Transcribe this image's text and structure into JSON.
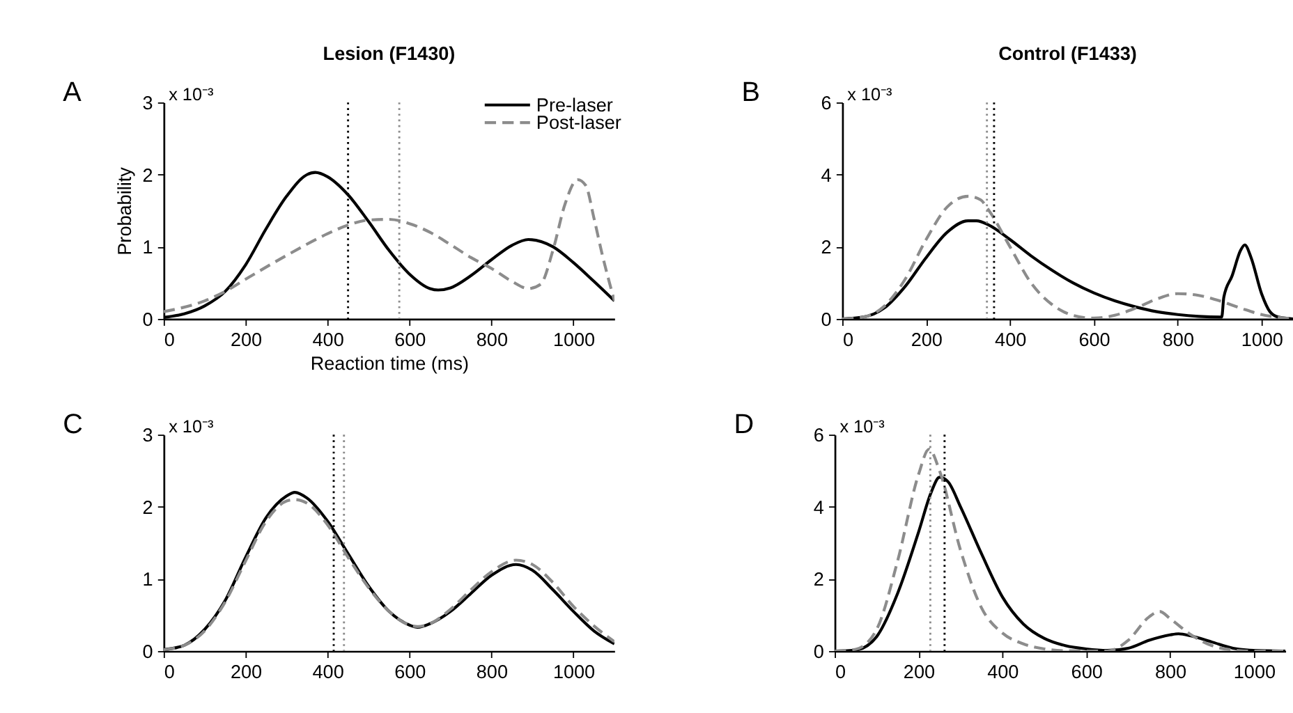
{
  "chart_data": [
    {
      "type": "line",
      "title": "Lesion (F1430)",
      "xlabel": "Reaction time (ms)",
      "ylabel": "Probability",
      "annotations": [
        "A",
        "x 10⁻³"
      ],
      "xlim": [
        0,
        1100
      ],
      "xticks": [
        0,
        200,
        400,
        600,
        800,
        1000
      ],
      "ylim": [
        0,
        3
      ],
      "yticks": [
        0,
        1,
        2,
        3
      ],
      "grid": false,
      "legend": "top right",
      "series": [
        {
          "name": "Pre-laser",
          "color": "#000000",
          "line_style": "solid",
          "x": [
            0,
            50,
            100,
            150,
            200,
            250,
            300,
            350,
            370,
            400,
            450,
            500,
            550,
            600,
            650,
            670,
            700,
            750,
            800,
            850,
            890,
            950,
            1000,
            1050,
            1100
          ],
          "values": [
            0.02,
            0.07,
            0.18,
            0.38,
            0.75,
            1.25,
            1.7,
            2.0,
            2.03,
            1.97,
            1.72,
            1.35,
            0.95,
            0.62,
            0.42,
            0.4,
            0.43,
            0.6,
            0.82,
            1.02,
            1.1,
            1.0,
            0.78,
            0.52,
            0.25
          ]
        },
        {
          "name": "Post-laser",
          "color": "#8c8c8c",
          "line_style": "dashed",
          "x": [
            0,
            100,
            150,
            200,
            300,
            400,
            450,
            500,
            550,
            600,
            650,
            700,
            750,
            800,
            850,
            890,
            920,
            950,
            980,
            1010,
            1030,
            1050,
            1070,
            1100
          ],
          "values": [
            0.1,
            0.25,
            0.38,
            0.55,
            0.88,
            1.18,
            1.3,
            1.37,
            1.38,
            1.32,
            1.2,
            1.03,
            0.85,
            0.7,
            0.52,
            0.42,
            0.48,
            0.95,
            1.6,
            1.93,
            1.85,
            1.4,
            0.9,
            0.25
          ]
        }
      ],
      "ref_lines": [
        {
          "axis": "x",
          "value": 450,
          "color": "#000000",
          "line_style": "dotted"
        },
        {
          "axis": "x",
          "value": 575,
          "color": "#8c8c8c",
          "line_style": "dotted"
        }
      ]
    },
    {
      "type": "line",
      "title": "Control (F1433)",
      "annotations": [
        "B",
        "x 10⁻³"
      ],
      "xlim": [
        0,
        1075
      ],
      "xticks": [
        0,
        200,
        400,
        600,
        800,
        1000
      ],
      "ylim": [
        0,
        6
      ],
      "yticks": [
        0,
        2,
        4,
        6
      ],
      "grid": false,
      "series": [
        {
          "color": "#000000",
          "line_style": "solid",
          "x": [
            0,
            50,
            100,
            150,
            200,
            250,
            300,
            320,
            350,
            400,
            450,
            500,
            550,
            600,
            650,
            700,
            750,
            800,
            850,
            905,
            910,
            930,
            950,
            960,
            975,
            1000,
            1020,
            1040,
            1075
          ],
          "values": [
            0,
            0.05,
            0.3,
            0.9,
            1.7,
            2.4,
            2.72,
            2.72,
            2.6,
            2.2,
            1.75,
            1.35,
            1.0,
            0.72,
            0.5,
            0.33,
            0.2,
            0.12,
            0.07,
            0.05,
            0.6,
            1.2,
            1.9,
            2.05,
            1.7,
            0.7,
            0.2,
            0.05,
            0
          ]
        },
        {
          "color": "#8c8c8c",
          "line_style": "dashed",
          "x": [
            0,
            50,
            100,
            150,
            200,
            250,
            300,
            330,
            350,
            400,
            450,
            500,
            550,
            600,
            650,
            700,
            750,
            800,
            850,
            900,
            950,
            1000,
            1050,
            1075
          ],
          "values": [
            0,
            0.05,
            0.35,
            1.1,
            2.2,
            3.1,
            3.4,
            3.3,
            3.0,
            2.0,
            1.0,
            0.4,
            0.1,
            0.02,
            0.1,
            0.3,
            0.55,
            0.7,
            0.65,
            0.5,
            0.3,
            0.12,
            0.03,
            0
          ]
        }
      ],
      "ref_lines": [
        {
          "axis": "x",
          "value": 345,
          "color": "#8c8c8c",
          "line_style": "dotted"
        },
        {
          "axis": "x",
          "value": 362,
          "color": "#000000",
          "line_style": "dotted"
        }
      ]
    },
    {
      "type": "line",
      "annotations": [
        "C",
        "x 10⁻³"
      ],
      "xlim": [
        0,
        1100
      ],
      "xticks": [
        0,
        200,
        400,
        600,
        800,
        1000
      ],
      "ylim": [
        0,
        3
      ],
      "yticks": [
        0,
        1,
        2,
        3
      ],
      "grid": false,
      "series": [
        {
          "color": "#000000",
          "line_style": "solid",
          "x": [
            0,
            50,
            100,
            150,
            200,
            250,
            300,
            320,
            350,
            400,
            450,
            500,
            550,
            600,
            620,
            650,
            700,
            750,
            800,
            860,
            900,
            950,
            1000,
            1050,
            1100
          ],
          "values": [
            0.02,
            0.08,
            0.3,
            0.7,
            1.3,
            1.85,
            2.15,
            2.2,
            2.12,
            1.8,
            1.35,
            0.9,
            0.55,
            0.36,
            0.33,
            0.38,
            0.55,
            0.8,
            1.05,
            1.2,
            1.12,
            0.85,
            0.55,
            0.28,
            0.1
          ]
        },
        {
          "color": "#8c8c8c",
          "line_style": "dashed",
          "x": [
            0,
            50,
            100,
            150,
            200,
            250,
            300,
            320,
            350,
            400,
            450,
            500,
            550,
            600,
            620,
            650,
            700,
            750,
            800,
            860,
            900,
            950,
            1000,
            1050,
            1100
          ],
          "values": [
            0.02,
            0.08,
            0.28,
            0.68,
            1.25,
            1.8,
            2.08,
            2.1,
            2.05,
            1.75,
            1.3,
            0.88,
            0.55,
            0.36,
            0.34,
            0.38,
            0.58,
            0.85,
            1.1,
            1.26,
            1.2,
            0.95,
            0.62,
            0.35,
            0.13
          ]
        }
      ],
      "ref_lines": [
        {
          "axis": "x",
          "value": 415,
          "color": "#000000",
          "line_style": "dotted"
        },
        {
          "axis": "x",
          "value": 440,
          "color": "#8c8c8c",
          "line_style": "dotted"
        }
      ]
    },
    {
      "type": "line",
      "annotations": [
        "D",
        "x 10⁻³"
      ],
      "xlim": [
        0,
        1075
      ],
      "xticks": [
        0,
        200,
        400,
        600,
        800,
        1000
      ],
      "ylim": [
        0,
        6
      ],
      "yticks": [
        0,
        2,
        4,
        6
      ],
      "grid": false,
      "series": [
        {
          "color": "#000000",
          "line_style": "solid",
          "x": [
            0,
            50,
            100,
            150,
            200,
            230,
            250,
            270,
            300,
            350,
            400,
            450,
            500,
            550,
            600,
            650,
            700,
            750,
            800,
            820,
            850,
            900,
            950,
            1000,
            1075
          ],
          "values": [
            0,
            0.03,
            0.4,
            1.6,
            3.3,
            4.4,
            4.82,
            4.7,
            4.0,
            2.7,
            1.5,
            0.75,
            0.35,
            0.15,
            0.06,
            0.02,
            0.08,
            0.3,
            0.45,
            0.48,
            0.42,
            0.25,
            0.08,
            0.02,
            0
          ]
        },
        {
          "color": "#8c8c8c",
          "line_style": "dashed",
          "x": [
            0,
            50,
            100,
            150,
            200,
            225,
            250,
            300,
            350,
            400,
            450,
            500,
            550,
            650,
            700,
            750,
            775,
            800,
            850,
            900,
            950,
            1000,
            1075
          ],
          "values": [
            0,
            0.05,
            0.6,
            2.5,
            4.9,
            5.6,
            5.0,
            2.8,
            1.2,
            0.5,
            0.2,
            0.06,
            0.01,
            0,
            0.3,
            0.95,
            1.1,
            0.9,
            0.45,
            0.15,
            0.03,
            0,
            0
          ]
        }
      ],
      "ref_lines": [
        {
          "axis": "x",
          "value": 228,
          "color": "#8c8c8c",
          "line_style": "dotted"
        },
        {
          "axis": "x",
          "value": 262,
          "color": "#000000",
          "line_style": "dotted"
        }
      ]
    }
  ]
}
